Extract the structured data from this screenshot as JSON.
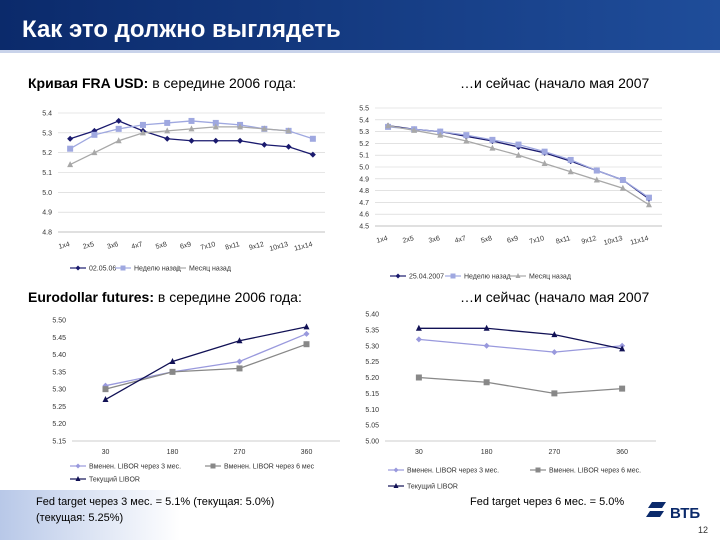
{
  "title": "Как это должно выглядеть",
  "captions": [
    {
      "bold": "Кривая FRA USD:",
      "text": "в середине 2006 года:"
    },
    {
      "text": "…и сейчас (начало мая 2007"
    },
    {
      "bold": "Eurodollar futures:",
      "text": "в середине 2006 года:"
    },
    {
      "text": "…и сейчас (начало мая 2007"
    }
  ],
  "footer": {
    "left": [
      "Fed target через 3 мес. = 5.1% (текущая: 5.0%)",
      "(текущая: 5.25%)"
    ],
    "right": "Fed target через 6 мес. = 5.0%",
    "logo": "ВТБ",
    "page": "12"
  },
  "chart_data": [
    {
      "type": "line",
      "grid": true,
      "categories": [
        "1x4",
        "2x5",
        "3x6",
        "4x7",
        "5x8",
        "6x9",
        "7x10",
        "8x11",
        "9x12",
        "10x13",
        "11x14"
      ],
      "ylim": [
        4.8,
        5.4
      ],
      "yticks": [
        4.8,
        4.9,
        {
          "value": 5,
          "label": "5.0"
        },
        5.1,
        5.2,
        5.3,
        5.4
      ],
      "series": [
        {
          "name": "02.05.06",
          "color": "#1a1a6e",
          "marker": "diamond",
          "values": [
            5.27,
            5.31,
            5.36,
            5.31,
            5.27,
            5.26,
            5.26,
            5.26,
            5.24,
            5.23,
            5.19
          ]
        },
        {
          "name": "Неделю назад",
          "color": "#9fa8e0",
          "marker": "square",
          "values": [
            5.22,
            5.29,
            5.32,
            5.34,
            5.35,
            5.36,
            5.35,
            5.34,
            5.32,
            5.31,
            5.27
          ]
        },
        {
          "name": "Месяц назад",
          "color": "#a8a8a8",
          "marker": "triangle",
          "values": [
            5.14,
            5.2,
            5.26,
            5.3,
            5.31,
            5.32,
            5.33,
            5.33,
            5.32,
            5.31,
            null
          ]
        }
      ]
    },
    {
      "type": "line",
      "grid": true,
      "categories": [
        "1x4",
        "2x5",
        "3x6",
        "4x7",
        "5x8",
        "6x9",
        "7x10",
        "8x11",
        "9x12",
        "10x13",
        "11x14"
      ],
      "ylim": [
        4.5,
        5.5
      ],
      "yticks": [
        4.5,
        4.6,
        4.7,
        4.8,
        4.9,
        {
          "value": 5,
          "label": "5.0"
        },
        5.1,
        5.2,
        5.3,
        5.4,
        5.5
      ],
      "series": [
        {
          "name": "25.04.2007",
          "color": "#1a1a6e",
          "marker": "diamond",
          "values": [
            5.35,
            5.32,
            5.3,
            5.26,
            5.22,
            5.17,
            5.12,
            5.05,
            4.97,
            4.89,
            4.73
          ]
        },
        {
          "name": "Неделю назад",
          "color": "#9fa8e0",
          "marker": "square",
          "values": [
            5.34,
            5.32,
            5.3,
            5.27,
            5.23,
            5.19,
            5.13,
            5.06,
            4.97,
            4.89,
            4.74
          ]
        },
        {
          "name": "Месяц назад",
          "color": "#a8a8a8",
          "marker": "triangle",
          "values": [
            5.35,
            5.31,
            5.27,
            5.22,
            5.16,
            5.1,
            5.03,
            4.96,
            4.89,
            4.82,
            4.68
          ]
        }
      ]
    },
    {
      "type": "line",
      "grid": false,
      "categories": [
        "30",
        "180",
        "270",
        "360"
      ],
      "ylim": [
        5.15,
        5.5
      ],
      "yticks": [
        5.15,
        {
          "value": 5.2,
          "label": "5.20"
        },
        5.25,
        {
          "value": 5.3,
          "label": "5.30"
        },
        5.35,
        {
          "value": 5.4,
          "label": "5.40"
        },
        5.45,
        {
          "value": 5.5,
          "label": "5.50"
        }
      ],
      "series": [
        {
          "name": "Вменен. LIBOR через 3 мес.",
          "color": "#9999dd",
          "marker": "diamond",
          "values": [
            5.31,
            5.35,
            5.38,
            5.46
          ]
        },
        {
          "name": "Вменен. LIBOR через 6 мес",
          "color": "#888888",
          "marker": "square",
          "values": [
            5.3,
            5.35,
            5.36,
            5.43
          ]
        },
        {
          "name": "Текущий LIBOR",
          "color": "#111155",
          "marker": "triangle",
          "values": [
            5.27,
            5.38,
            5.44,
            5.48
          ]
        }
      ]
    },
    {
      "type": "line",
      "grid": false,
      "categories": [
        "30",
        "180",
        "270",
        "360"
      ],
      "ylim": [
        5,
        5.4
      ],
      "yticks": [
        {
          "value": 5,
          "label": "5.00"
        },
        5.05,
        {
          "value": 5.1,
          "label": "5.10"
        },
        5.15,
        {
          "value": 5.2,
          "label": "5.20"
        },
        5.25,
        {
          "value": 5.3,
          "label": "5.30"
        },
        5.35,
        {
          "value": 5.4,
          "label": "5.40"
        }
      ],
      "series": [
        {
          "name": "Вменен. LIBOR через 3 мес.",
          "color": "#9999dd",
          "marker": "diamond",
          "values": [
            5.32,
            5.3,
            5.28,
            5.3
          ]
        },
        {
          "name": "Вменен. LIBOR через 6 мес.",
          "color": "#888888",
          "marker": "square",
          "values": [
            5.2,
            5.185,
            5.15,
            5.165
          ]
        },
        {
          "name": "Текущий LIBOR",
          "color": "#111155",
          "marker": "triangle",
          "values": [
            5.355,
            5.355,
            5.335,
            5.29
          ]
        }
      ]
    }
  ]
}
